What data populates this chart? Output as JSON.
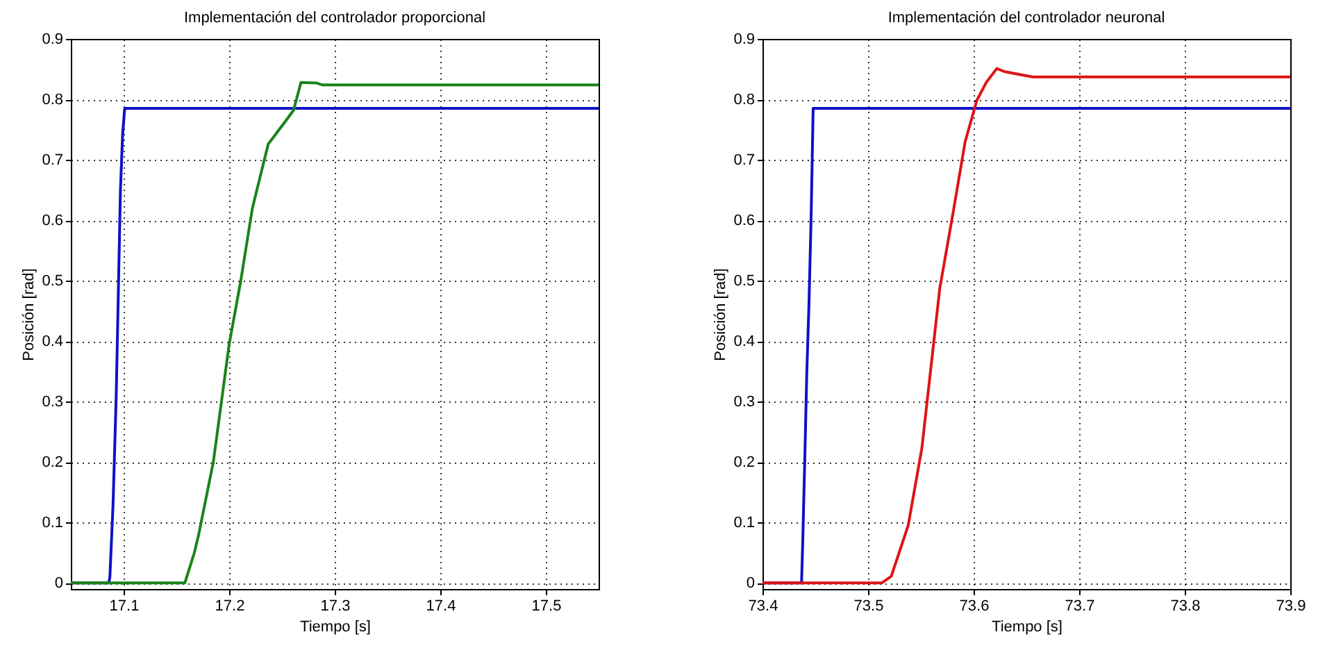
{
  "chart_data": [
    {
      "type": "line",
      "title": "Implementación del controlador proporcional",
      "xlabel": "Tiempo [s]",
      "ylabel": "Posición [rad]",
      "xlim": [
        17.05,
        17.55
      ],
      "xticks": [
        17.1,
        17.2,
        17.3,
        17.4,
        17.5
      ],
      "ylim": [
        -0.01,
        0.9
      ],
      "yticks": [
        0,
        0.1,
        0.2,
        0.3,
        0.4,
        0.5,
        0.6,
        0.7,
        0.8,
        0.9
      ],
      "grid": true,
      "line_style": "solid",
      "series": [
        {
          "color": "#1010c8",
          "x": [
            17.05,
            17.086,
            17.087,
            17.09,
            17.093,
            17.095,
            17.097,
            17.099,
            17.101,
            17.55
          ],
          "values": [
            0,
            0,
            0.01,
            0.13,
            0.31,
            0.48,
            0.65,
            0.74,
            0.785,
            0.785
          ]
        },
        {
          "color": "#1a841a",
          "x": [
            17.05,
            17.158,
            17.167,
            17.171,
            17.185,
            17.2,
            17.211,
            17.222,
            17.237,
            17.253,
            17.261,
            17.268,
            17.283,
            17.288,
            17.55
          ],
          "values": [
            0,
            0,
            0.05,
            0.079,
            0.2,
            0.395,
            0.5,
            0.62,
            0.726,
            0.763,
            0.782,
            0.828,
            0.827,
            0.824,
            0.824
          ]
        }
      ]
    },
    {
      "type": "line",
      "title": "Implementación del controlador neuronal",
      "xlabel": "Tiempo [s]",
      "ylabel": "Posición [rad]",
      "xlim": [
        73.4,
        73.9
      ],
      "xticks": [
        73.4,
        73.5,
        73.6,
        73.7,
        73.8,
        73.9
      ],
      "ylim": [
        -0.01,
        0.9
      ],
      "yticks": [
        0,
        0.1,
        0.2,
        0.3,
        0.4,
        0.5,
        0.6,
        0.7,
        0.8,
        0.9
      ],
      "grid": true,
      "line_style": "solid",
      "series": [
        {
          "color": "#1010c8",
          "x": [
            73.4,
            73.437,
            73.438,
            73.44,
            73.442,
            73.444,
            73.446,
            73.448,
            73.9
          ],
          "values": [
            0,
            0,
            0.06,
            0.2,
            0.35,
            0.46,
            0.6,
            0.785,
            0.785
          ]
        },
        {
          "color": "#dd1515",
          "x": [
            73.4,
            73.513,
            73.522,
            73.538,
            73.551,
            73.568,
            73.581,
            73.592,
            73.603,
            73.612,
            73.622,
            73.629,
            73.647,
            73.656,
            73.9
          ],
          "values": [
            0,
            0,
            0.011,
            0.095,
            0.223,
            0.488,
            0.617,
            0.73,
            0.798,
            0.828,
            0.851,
            0.846,
            0.84,
            0.837,
            0.837
          ]
        }
      ]
    }
  ]
}
